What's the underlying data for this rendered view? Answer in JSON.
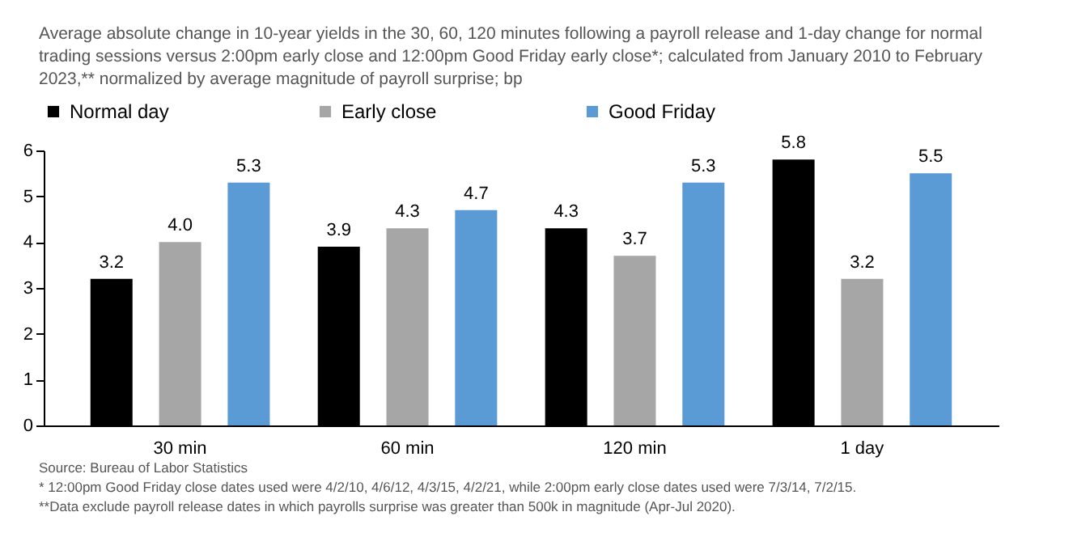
{
  "chart_data": {
    "type": "bar",
    "title": "Average absolute change in 10-year yields in the 30, 60, 120 minutes following a payroll release and 1-day change for normal trading sessions versus 2:00pm early close and 12:00pm Good Friday early close*; calculated from January 2010 to February 2023,** normalized by average magnitude of payroll surprise; bp",
    "categories": [
      "30 min",
      "60 min",
      "120 min",
      "1 day"
    ],
    "series": [
      {
        "name": "Normal day",
        "color": "#000000",
        "values": [
          3.2,
          3.9,
          4.3,
          5.8
        ],
        "value_labels": [
          "3.2",
          "3.9",
          "4.3",
          "5.8"
        ]
      },
      {
        "name": "Early close",
        "color": "#a6a6a6",
        "values": [
          4.0,
          4.3,
          3.7,
          3.2
        ],
        "value_labels": [
          "4.0",
          "4.3",
          "3.7",
          "3.2"
        ]
      },
      {
        "name": "Good Friday",
        "color": "#5b9bd5",
        "values": [
          5.3,
          4.7,
          5.3,
          5.5
        ],
        "value_labels": [
          "5.3",
          "4.7",
          "5.3",
          "5.5"
        ]
      }
    ],
    "ylim": [
      0,
      6
    ],
    "yticks": [
      0,
      1,
      2,
      3,
      4,
      5,
      6
    ],
    "grid": false,
    "legend": "top",
    "annotations": [
      "Source: Bureau of Labor Statistics",
      "* 12:00pm Good Friday close dates used were 4/2/10, 4/6/12, 4/3/15, 4/2/21, while 2:00pm early close dates used were 7/3/14, 7/2/15.",
      "**Data exclude payroll release dates in which payrolls surprise was greater than 500k in magnitude (Apr-Jul 2020)."
    ]
  }
}
